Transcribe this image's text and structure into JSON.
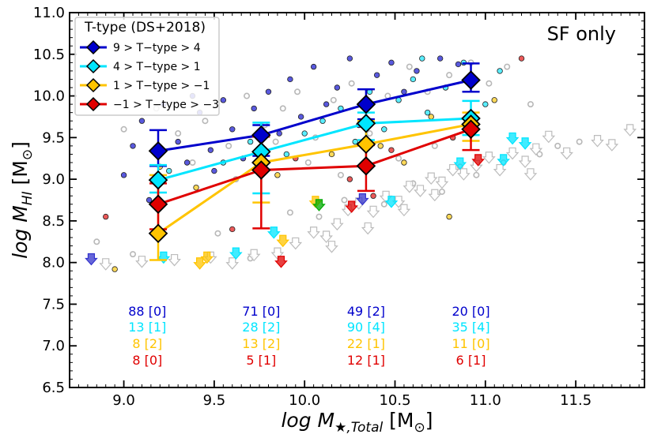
{
  "chart_data": {
    "type": "scatter",
    "annotation": "SF only",
    "xlabel_main": "log M",
    "xlabel_sub": "★,Total",
    "xlabel_unit": " [M",
    "ylabel_main": "log M",
    "ylabel_sub": "HI",
    "ylabel_unit": " [M",
    "sun_symbol": "⊙",
    "xlim": [
      8.7,
      11.88
    ],
    "ylim": [
      6.5,
      11.0
    ],
    "x_ticks": [
      9.0,
      9.5,
      10.0,
      10.5,
      11.0,
      11.5
    ],
    "x_tick_labels": [
      "9.0",
      "9.5",
      "10.0",
      "10.5",
      "11.0",
      "11.5"
    ],
    "y_ticks": [
      6.5,
      7.0,
      7.5,
      8.0,
      8.5,
      9.0,
      9.5,
      10.0,
      10.5,
      11.0
    ],
    "y_tick_labels": [
      "6.5",
      "7.0",
      "7.5",
      "8.0",
      "8.5",
      "9.0",
      "9.5",
      "10.0",
      "10.5",
      "11.0"
    ],
    "legend": {
      "title": "T-type (DS+2018)",
      "position": "top-left"
    },
    "series": [
      {
        "name": "9 > T−type > 4",
        "color": "#0000cc",
        "x": [
          9.19,
          9.76,
          10.34,
          10.92
        ],
        "y": [
          9.34,
          9.53,
          9.9,
          10.19
        ],
        "err_lo": [
          0.18,
          0.25,
          0.18,
          0.14
        ],
        "err_hi": [
          0.25,
          0.12,
          0.18,
          0.2
        ],
        "counts": [
          "88 [0]",
          "71 [0]",
          "49 [2]",
          "20 [0]"
        ]
      },
      {
        "name": "4 > T−type > 1",
        "color": "#00e5ff",
        "x": [
          9.19,
          9.76,
          10.34,
          10.92
        ],
        "y": [
          8.99,
          9.33,
          9.67,
          9.73
        ],
        "err_lo": [
          0.15,
          0.5,
          0.2,
          0.2
        ],
        "err_hi": [
          0.18,
          0.35,
          0.13,
          0.21
        ],
        "counts": [
          "13 [1]",
          "28 [2]",
          "90 [4]",
          "35 [4]"
        ]
      },
      {
        "name": "1 > T−type > −1",
        "color": "#ffc400",
        "x": [
          9.19,
          9.76,
          10.34,
          10.92
        ],
        "y": [
          8.35,
          9.2,
          9.42,
          9.66
        ],
        "err_lo": [
          0.32,
          0.48,
          0.26,
          0.2
        ],
        "err_hi": [
          0.7,
          0.32,
          0.28,
          0.14
        ],
        "counts": [
          "8 [2]",
          "13 [2]",
          "22 [1]",
          "11 [0]"
        ]
      },
      {
        "name": "−1 > T−type > −3",
        "color": "#e00000",
        "x": [
          9.19,
          9.76,
          10.34,
          10.92
        ],
        "y": [
          8.7,
          9.11,
          9.16,
          9.6
        ],
        "err_lo": [
          0.3,
          0.7,
          0.3,
          0.25
        ],
        "err_hi": [
          0.25,
          0.4,
          0.25,
          0.13
        ],
        "counts": [
          "8 [0]",
          "5 [1]",
          "12 [1]",
          "6 [1]"
        ]
      }
    ],
    "background_scatter": [
      {
        "x": 9.05,
        "y": 9.4,
        "c": "#0000cc"
      },
      {
        "x": 9.1,
        "y": 9.7,
        "c": "#0000cc"
      },
      {
        "x": 9.22,
        "y": 9.9,
        "c": "#0000cc"
      },
      {
        "x": 9.3,
        "y": 9.45,
        "c": "#0000cc"
      },
      {
        "x": 9.35,
        "y": 9.2,
        "c": "#0000cc"
      },
      {
        "x": 9.42,
        "y": 9.8,
        "c": "#0000cc"
      },
      {
        "x": 9.48,
        "y": 9.35,
        "c": "#0000cc"
      },
      {
        "x": 9.55,
        "y": 9.95,
        "c": "#0000cc"
      },
      {
        "x": 9.6,
        "y": 9.6,
        "c": "#0000cc"
      },
      {
        "x": 9.66,
        "y": 9.25,
        "c": "#0000cc"
      },
      {
        "x": 9.72,
        "y": 9.85,
        "c": "#0000cc"
      },
      {
        "x": 9.8,
        "y": 10.05,
        "c": "#0000cc"
      },
      {
        "x": 9.86,
        "y": 9.55,
        "c": "#0000cc"
      },
      {
        "x": 9.92,
        "y": 10.2,
        "c": "#0000cc"
      },
      {
        "x": 9.98,
        "y": 9.75,
        "c": "#0000cc"
      },
      {
        "x": 10.05,
        "y": 10.35,
        "c": "#0000cc"
      },
      {
        "x": 10.12,
        "y": 9.9,
        "c": "#0000cc"
      },
      {
        "x": 10.18,
        "y": 10.1,
        "c": "#0000cc"
      },
      {
        "x": 10.25,
        "y": 10.45,
        "c": "#0000cc"
      },
      {
        "x": 10.3,
        "y": 9.65,
        "c": "#0000cc"
      },
      {
        "x": 10.4,
        "y": 10.25,
        "c": "#0000cc"
      },
      {
        "x": 10.48,
        "y": 10.4,
        "c": "#0000cc"
      },
      {
        "x": 10.55,
        "y": 10.05,
        "c": "#0000cc"
      },
      {
        "x": 10.62,
        "y": 10.3,
        "c": "#0000cc"
      },
      {
        "x": 10.75,
        "y": 10.45,
        "c": "#0000cc"
      },
      {
        "x": 10.85,
        "y": 10.38,
        "c": "#0000cc"
      },
      {
        "x": 9.0,
        "y": 9.05,
        "c": "#0000cc"
      },
      {
        "x": 9.14,
        "y": 8.75,
        "c": "#0000cc"
      },
      {
        "x": 9.38,
        "y": 10.0,
        "c": "#0000cc"
      },
      {
        "x": 9.5,
        "y": 9.1,
        "c": "#0000cc"
      },
      {
        "x": 9.7,
        "y": 9.45,
        "c": "#00e5ff"
      },
      {
        "x": 9.9,
        "y": 9.3,
        "c": "#00e5ff"
      },
      {
        "x": 10.0,
        "y": 9.55,
        "c": "#00e5ff"
      },
      {
        "x": 10.1,
        "y": 9.7,
        "c": "#00e5ff"
      },
      {
        "x": 10.2,
        "y": 9.85,
        "c": "#00e5ff"
      },
      {
        "x": 10.28,
        "y": 9.45,
        "c": "#00e5ff"
      },
      {
        "x": 10.36,
        "y": 10.05,
        "c": "#00e5ff"
      },
      {
        "x": 10.44,
        "y": 9.6,
        "c": "#00e5ff"
      },
      {
        "x": 10.52,
        "y": 9.95,
        "c": "#00e5ff"
      },
      {
        "x": 10.6,
        "y": 10.2,
        "c": "#00e5ff"
      },
      {
        "x": 10.68,
        "y": 9.8,
        "c": "#00e5ff"
      },
      {
        "x": 10.78,
        "y": 10.1,
        "c": "#00e5ff"
      },
      {
        "x": 10.88,
        "y": 10.4,
        "c": "#00e5ff"
      },
      {
        "x": 11.0,
        "y": 9.9,
        "c": "#00e5ff"
      },
      {
        "x": 11.08,
        "y": 10.3,
        "c": "#00e5ff"
      },
      {
        "x": 9.25,
        "y": 9.1,
        "c": "#00e5ff"
      },
      {
        "x": 9.55,
        "y": 9.2,
        "c": "#00e5ff"
      },
      {
        "x": 10.65,
        "y": 10.45,
        "c": "#00e5ff"
      },
      {
        "x": 9.4,
        "y": 8.9,
        "c": "#ffc400"
      },
      {
        "x": 9.85,
        "y": 9.05,
        "c": "#ffc400"
      },
      {
        "x": 10.15,
        "y": 9.3,
        "c": "#ffc400"
      },
      {
        "x": 10.42,
        "y": 9.4,
        "c": "#ffc400"
      },
      {
        "x": 10.7,
        "y": 9.75,
        "c": "#ffc400"
      },
      {
        "x": 11.05,
        "y": 9.95,
        "c": "#ffc400"
      },
      {
        "x": 8.95,
        "y": 7.92,
        "c": "#ffc400"
      },
      {
        "x": 10.8,
        "y": 8.55,
        "c": "#ffc400"
      },
      {
        "x": 9.2,
        "y": 9.15,
        "c": "#ffc400"
      },
      {
        "x": 10.55,
        "y": 9.2,
        "c": "#ffc400"
      },
      {
        "x": 8.9,
        "y": 8.55,
        "c": "#e00000"
      },
      {
        "x": 9.95,
        "y": 9.25,
        "c": "#e00000"
      },
      {
        "x": 10.25,
        "y": 9.0,
        "c": "#e00000"
      },
      {
        "x": 10.48,
        "y": 9.35,
        "c": "#e00000"
      },
      {
        "x": 10.82,
        "y": 9.5,
        "c": "#e00000"
      },
      {
        "x": 11.2,
        "y": 10.45,
        "c": "#e00000"
      },
      {
        "x": 9.6,
        "y": 8.4,
        "c": "#e00000"
      },
      {
        "x": 10.38,
        "y": 8.8,
        "c": "#e00000"
      }
    ],
    "grey_points": [
      {
        "x": 9.0,
        "y": 9.6
      },
      {
        "x": 9.18,
        "y": 9.85
      },
      {
        "x": 9.3,
        "y": 9.55
      },
      {
        "x": 9.45,
        "y": 9.7
      },
      {
        "x": 9.58,
        "y": 9.4
      },
      {
        "x": 9.68,
        "y": 10.0
      },
      {
        "x": 9.78,
        "y": 9.65
      },
      {
        "x": 9.88,
        "y": 9.85
      },
      {
        "x": 9.96,
        "y": 10.05
      },
      {
        "x": 10.06,
        "y": 9.5
      },
      {
        "x": 10.16,
        "y": 9.95
      },
      {
        "x": 10.26,
        "y": 10.15
      },
      {
        "x": 10.36,
        "y": 9.55
      },
      {
        "x": 10.46,
        "y": 10.0
      },
      {
        "x": 10.58,
        "y": 10.35
      },
      {
        "x": 10.68,
        "y": 10.05
      },
      {
        "x": 10.8,
        "y": 10.25
      },
      {
        "x": 10.92,
        "y": 10.4
      },
      {
        "x": 11.02,
        "y": 10.15
      },
      {
        "x": 11.12,
        "y": 10.35
      },
      {
        "x": 11.25,
        "y": 9.9
      },
      {
        "x": 11.4,
        "y": 9.4
      },
      {
        "x": 8.85,
        "y": 8.25
      },
      {
        "x": 9.05,
        "y": 8.1
      },
      {
        "x": 9.52,
        "y": 8.35
      },
      {
        "x": 9.7,
        "y": 8.05
      },
      {
        "x": 9.92,
        "y": 8.6
      },
      {
        "x": 10.08,
        "y": 8.55
      },
      {
        "x": 10.22,
        "y": 8.75
      },
      {
        "x": 10.44,
        "y": 8.7
      },
      {
        "x": 10.6,
        "y": 8.95
      },
      {
        "x": 10.76,
        "y": 8.85
      },
      {
        "x": 10.95,
        "y": 9.05
      },
      {
        "x": 11.1,
        "y": 9.2
      },
      {
        "x": 11.3,
        "y": 9.3
      },
      {
        "x": 11.52,
        "y": 9.45
      },
      {
        "x": 9.38,
        "y": 9.2
      },
      {
        "x": 9.62,
        "y": 9.0
      },
      {
        "x": 9.84,
        "y": 9.45
      },
      {
        "x": 10.02,
        "y": 9.2
      },
      {
        "x": 10.2,
        "y": 9.05
      },
      {
        "x": 10.52,
        "y": 9.25
      },
      {
        "x": 10.72,
        "y": 9.4
      },
      {
        "x": 10.86,
        "y": 9.15
      }
    ],
    "upper_limits_grey": [
      {
        "x": 8.9,
        "y": 7.97
      },
      {
        "x": 9.1,
        "y": 8.0
      },
      {
        "x": 9.28,
        "y": 8.02
      },
      {
        "x": 9.48,
        "y": 8.05
      },
      {
        "x": 9.6,
        "y": 7.98
      },
      {
        "x": 9.72,
        "y": 8.08
      },
      {
        "x": 9.85,
        "y": 8.1
      },
      {
        "x": 9.95,
        "y": 8.22
      },
      {
        "x": 10.05,
        "y": 8.35
      },
      {
        "x": 10.12,
        "y": 8.3
      },
      {
        "x": 10.18,
        "y": 8.45
      },
      {
        "x": 10.24,
        "y": 8.62
      },
      {
        "x": 10.3,
        "y": 8.7
      },
      {
        "x": 10.38,
        "y": 8.6
      },
      {
        "x": 10.45,
        "y": 8.78
      },
      {
        "x": 10.52,
        "y": 8.72
      },
      {
        "x": 10.58,
        "y": 8.9
      },
      {
        "x": 10.64,
        "y": 8.85
      },
      {
        "x": 10.7,
        "y": 9.0
      },
      {
        "x": 10.76,
        "y": 8.95
      },
      {
        "x": 10.82,
        "y": 9.1
      },
      {
        "x": 10.88,
        "y": 9.05
      },
      {
        "x": 10.95,
        "y": 9.15
      },
      {
        "x": 11.02,
        "y": 9.25
      },
      {
        "x": 11.08,
        "y": 9.1
      },
      {
        "x": 11.15,
        "y": 9.3
      },
      {
        "x": 11.22,
        "y": 9.2
      },
      {
        "x": 11.28,
        "y": 9.35
      },
      {
        "x": 11.35,
        "y": 9.5
      },
      {
        "x": 11.45,
        "y": 9.3
      },
      {
        "x": 11.62,
        "y": 9.45
      },
      {
        "x": 11.7,
        "y": 9.4
      },
      {
        "x": 11.8,
        "y": 9.58
      },
      {
        "x": 10.15,
        "y": 8.18
      },
      {
        "x": 10.35,
        "y": 8.4
      },
      {
        "x": 10.55,
        "y": 8.62
      },
      {
        "x": 10.72,
        "y": 8.8
      },
      {
        "x": 11.25,
        "y": 9.05
      }
    ],
    "upper_limits_colored": [
      {
        "x": 8.82,
        "y": 8.03,
        "c": "#3333cc"
      },
      {
        "x": 9.22,
        "y": 8.05,
        "c": "#00e5ff"
      },
      {
        "x": 9.42,
        "y": 7.98,
        "c": "#ffc400"
      },
      {
        "x": 9.46,
        "y": 8.05,
        "c": "#ffc400"
      },
      {
        "x": 9.62,
        "y": 8.1,
        "c": "#00e5ff"
      },
      {
        "x": 9.87,
        "y": 8.0,
        "c": "#e00000"
      },
      {
        "x": 9.83,
        "y": 8.35,
        "c": "#00e5ff"
      },
      {
        "x": 9.88,
        "y": 8.25,
        "c": "#ffc400"
      },
      {
        "x": 10.06,
        "y": 8.72,
        "c": "#ffc400"
      },
      {
        "x": 10.08,
        "y": 8.68,
        "c": "#00aa00"
      },
      {
        "x": 10.32,
        "y": 8.75,
        "c": "#3333cc"
      },
      {
        "x": 10.26,
        "y": 8.66,
        "c": "#e00000"
      },
      {
        "x": 10.48,
        "y": 8.72,
        "c": "#00e5ff"
      },
      {
        "x": 10.86,
        "y": 9.18,
        "c": "#00e5ff"
      },
      {
        "x": 10.96,
        "y": 9.22,
        "c": "#e00000"
      },
      {
        "x": 11.1,
        "y": 9.22,
        "c": "#00e5ff"
      },
      {
        "x": 11.22,
        "y": 9.42,
        "c": "#00e5ff"
      },
      {
        "x": 11.15,
        "y": 9.48,
        "c": "#00e5ff"
      }
    ]
  }
}
